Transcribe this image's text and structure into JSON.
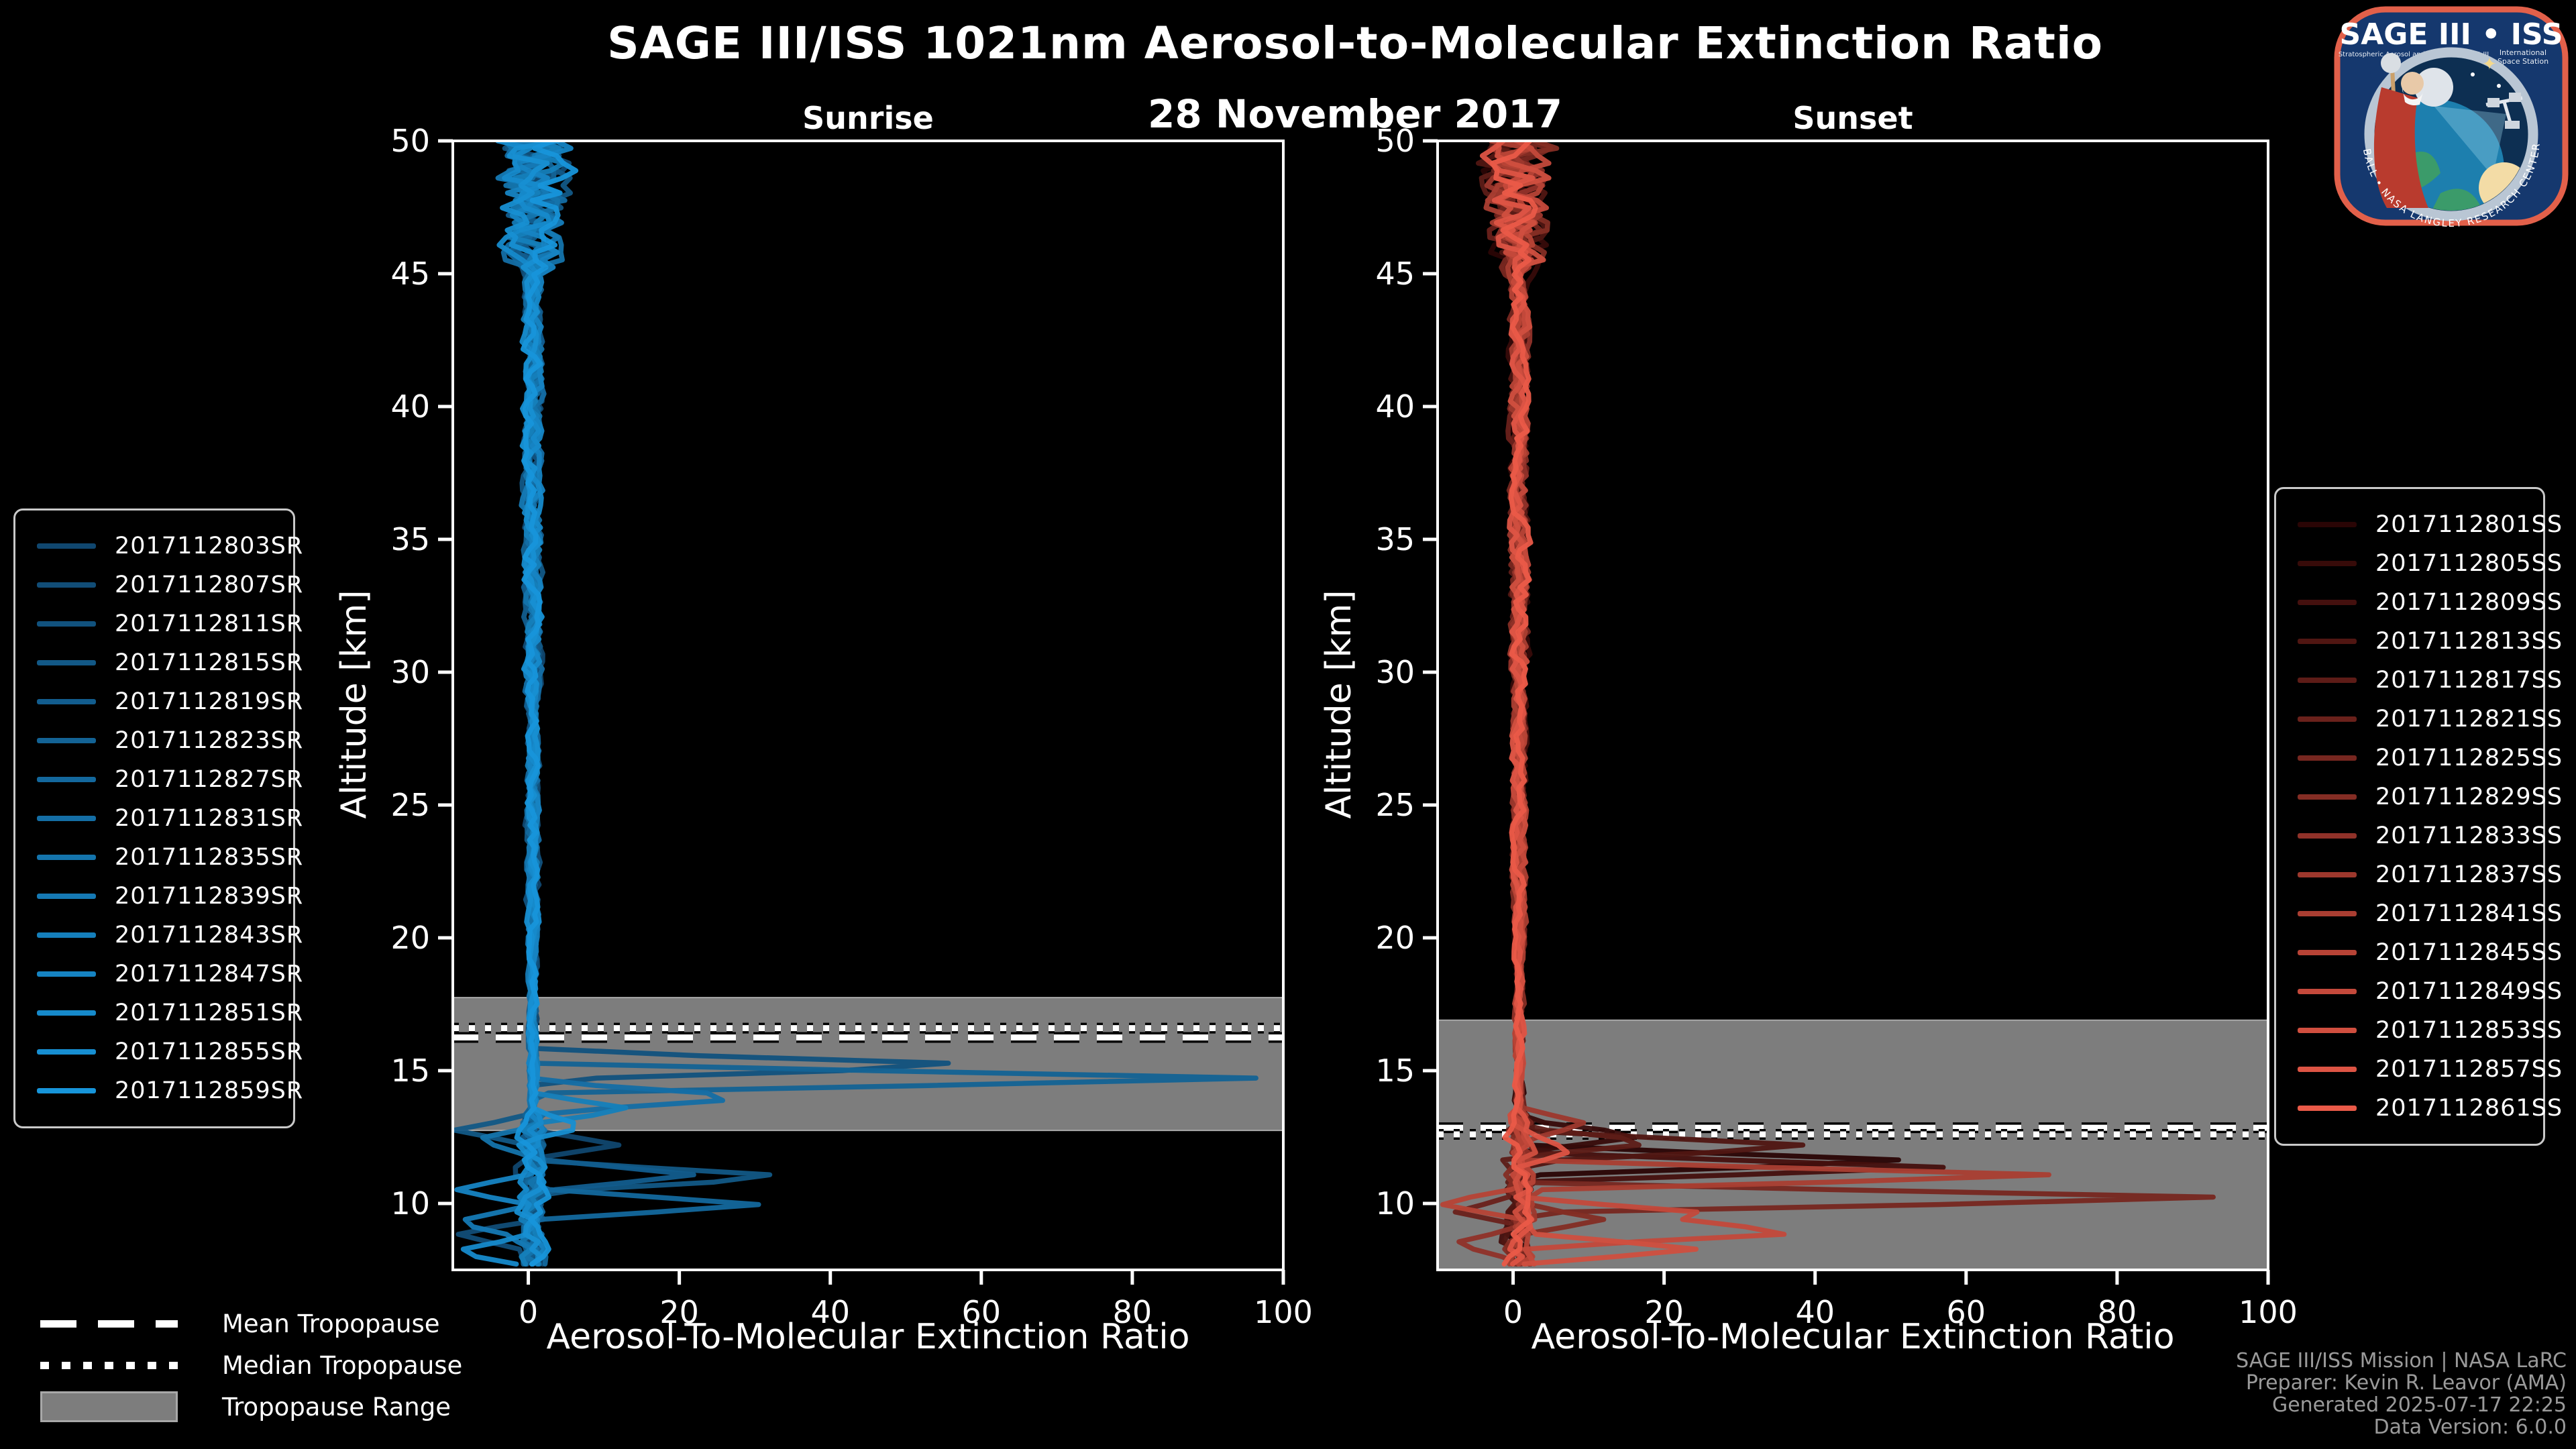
{
  "title": "SAGE III/ISS 1021nm Aerosol-to-Molecular Extinction Ratio",
  "subtitle": "28 November 2017",
  "footer": {
    "line1": "SAGE III/ISS Mission | NASA LaRC",
    "line2": "Preparer: Kevin R. Leavor (AMA)",
    "line3": "Generated 2025-07-17 22:25",
    "line4": "Data Version: 6.0.0"
  },
  "tropopause_legend": {
    "mean": "Mean Tropopause",
    "median": "Median Tropopause",
    "range": "Tropopause Range"
  },
  "logo": {
    "title": "SAGE III • ISS",
    "sub_left": "Stratospheric Aerosol and Gas Experiment III",
    "sub_right_1": "International",
    "sub_right_2": "Space Station",
    "ring_text": "BALL • NASA LANGLEY RESEARCH CENTER • TAS-I • ESA"
  },
  "style": {
    "background": "#000000",
    "foreground": "#ffffff",
    "tropopause_band_fill": "#7d7d7d",
    "tropopause_band_edge": "#a8a8a8",
    "footer_color": "#9a9a9a",
    "sunrise_color_start": "#10476f",
    "sunrise_color_end": "#1795da",
    "sunset_color_start": "#2a0505",
    "sunset_color_end": "#ea5a48",
    "logo_border": "#e2604a",
    "logo_background": "#15386e"
  },
  "chart_data": [
    {
      "panel": "sunrise",
      "type": "line",
      "title": "Sunrise",
      "xlabel": "Aerosol-To-Molecular Extinction Ratio",
      "ylabel": "Altitude [km]",
      "xlim": [
        -10,
        100
      ],
      "ylim": [
        7.5,
        50
      ],
      "xticks": [
        0,
        20,
        40,
        60,
        80,
        100
      ],
      "yticks": [
        10,
        15,
        20,
        25,
        30,
        35,
        40,
        45,
        50
      ],
      "grid": false,
      "legend_position": "outside-left",
      "tropopause": {
        "mean_km": 16.25,
        "median_km": 16.6,
        "range_km": [
          12.75,
          17.75
        ]
      },
      "baseline_ratio": 0.6,
      "series": [
        {
          "id": "2017112803SR",
          "spikes": [
            [
              12.2,
              12
            ]
          ]
        },
        {
          "id": "2017112807SR",
          "spikes": [
            [
              8.8,
              -10
            ]
          ]
        },
        {
          "id": "2017112811SR",
          "spikes": [
            [
              15.2,
              65
            ]
          ]
        },
        {
          "id": "2017112815SR",
          "spikes": [
            [
              11.0,
              37
            ],
            [
              12.75,
              -10
            ]
          ]
        },
        {
          "id": "2017112819SR",
          "spikes": [
            [
              11.05,
              23
            ]
          ]
        },
        {
          "id": "2017112823SR",
          "spikes": [
            [
              14.7,
              100
            ]
          ]
        },
        {
          "id": "2017112827SR",
          "spikes": [
            [
              9.95,
              31
            ]
          ]
        },
        {
          "id": "2017112831SR",
          "spikes": [
            [
              14.0,
              32
            ]
          ]
        },
        {
          "id": "2017112835SR",
          "spikes": [
            [
              12.4,
              -7
            ]
          ]
        },
        {
          "id": "2017112839SR",
          "spikes": [
            [
              9.3,
              -10
            ]
          ]
        },
        {
          "id": "2017112843SR",
          "spikes": [
            [
              13.55,
              14
            ]
          ]
        },
        {
          "id": "2017112847SR",
          "spikes": [
            [
              10.55,
              -10
            ]
          ]
        },
        {
          "id": "2017112851SR",
          "spikes": [
            [
              8.2,
              -10
            ]
          ]
        },
        {
          "id": "2017112855SR",
          "spikes": [
            [
              12.9,
              8
            ]
          ]
        },
        {
          "id": "2017112859SR",
          "spikes": []
        }
      ]
    },
    {
      "panel": "sunset",
      "type": "line",
      "title": "Sunset",
      "xlabel": "Aerosol-To-Molecular Extinction Ratio",
      "ylabel": "Altitude [km]",
      "xlim": [
        -10,
        100
      ],
      "ylim": [
        7.5,
        50
      ],
      "xticks": [
        0,
        20,
        40,
        60,
        80,
        100
      ],
      "yticks": [
        10,
        15,
        20,
        25,
        30,
        35,
        40,
        45,
        50
      ],
      "grid": false,
      "legend_position": "outside-right",
      "tropopause": {
        "mean_km": 12.85,
        "median_km": 12.6,
        "range_km": [
          7.5,
          16.9
        ]
      },
      "baseline_ratio": 0.8,
      "series": [
        {
          "id": "2017112801SS",
          "spikes": [
            [
              11.6,
              55
            ]
          ]
        },
        {
          "id": "2017112805SS",
          "spikes": [
            [
              12.55,
              18
            ]
          ]
        },
        {
          "id": "2017112809SS",
          "spikes": [
            [
              11.35,
              58
            ]
          ]
        },
        {
          "id": "2017112813SS",
          "spikes": [
            [
              12.15,
              42
            ]
          ]
        },
        {
          "id": "2017112817SS",
          "spikes": [
            [
              12.3,
              20
            ]
          ]
        },
        {
          "id": "2017112821SS",
          "spikes": [
            [
              9.7,
              -8
            ]
          ]
        },
        {
          "id": "2017112825SS",
          "spikes": [
            [
              10.2,
              100
            ]
          ]
        },
        {
          "id": "2017112829SS",
          "spikes": [
            [
              9.4,
              12
            ]
          ]
        },
        {
          "id": "2017112833SS",
          "spikes": [
            [
              8.5,
              -8
            ]
          ]
        },
        {
          "id": "2017112837SS",
          "spikes": [
            [
              13.0,
              10
            ]
          ]
        },
        {
          "id": "2017112841SS",
          "spikes": [
            [
              11.05,
              75
            ]
          ]
        },
        {
          "id": "2017112845SS",
          "spikes": [
            [
              10.0,
              -10
            ]
          ]
        },
        {
          "id": "2017112849SS",
          "spikes": [
            [
              8.95,
              44
            ],
            [
              9.6,
              28
            ]
          ]
        },
        {
          "id": "2017112853SS",
          "spikes": [
            [
              8.3,
              25
            ]
          ]
        },
        {
          "id": "2017112857SS",
          "spikes": [
            [
              12.0,
              8
            ]
          ]
        },
        {
          "id": "2017112861SS",
          "spikes": []
        }
      ]
    }
  ]
}
